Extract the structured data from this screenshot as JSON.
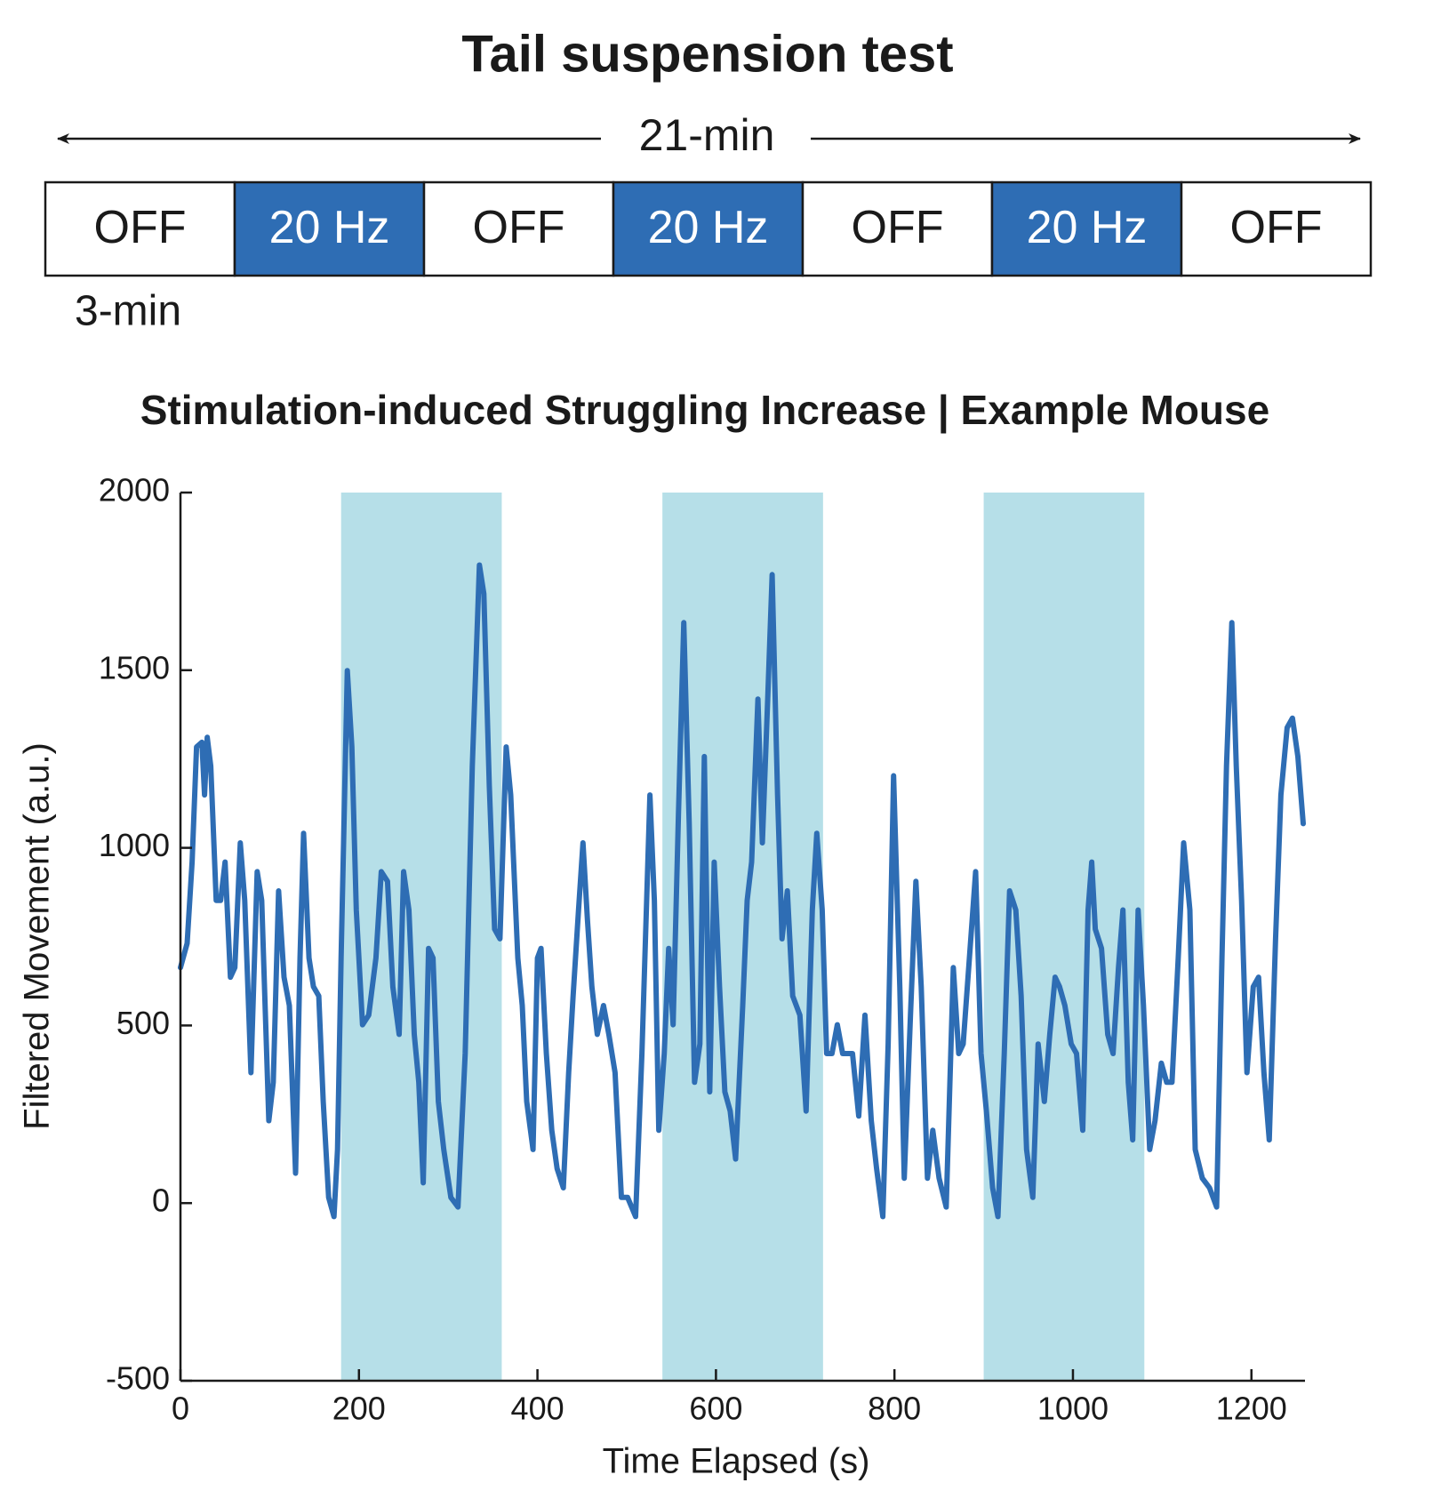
{
  "header": {
    "title": "Tail suspension test",
    "duration": "21-min",
    "segments": [
      {
        "label": "OFF",
        "active": false
      },
      {
        "label": "20 Hz",
        "active": true
      },
      {
        "label": "OFF",
        "active": false
      },
      {
        "label": "20 Hz",
        "active": true
      },
      {
        "label": "OFF",
        "active": false
      },
      {
        "label": "20 Hz",
        "active": true
      },
      {
        "label": "OFF",
        "active": false
      }
    ],
    "segment_duration": "3-min",
    "active_color": "#2e6db4"
  },
  "chart_data": {
    "type": "line",
    "title": "Stimulation-induced Struggling Increase | Example Mouse",
    "xlabel": "Time Elapsed (s)",
    "ylabel": "Filtered Movement (a.u.)",
    "color": "#2e6db4",
    "shade_color": "#b6dfe8",
    "stimulation_periods": [
      [
        180,
        360
      ],
      [
        540,
        720
      ],
      [
        900,
        1080
      ]
    ],
    "xlim": [
      0,
      1260
    ],
    "ylim": [
      -500,
      2000
    ],
    "xticks": [
      0,
      200,
      400,
      600,
      800,
      1000,
      1200
    ],
    "yticks": [
      -500,
      0,
      500,
      1000,
      1500,
      2000
    ],
    "x": [
      0,
      7.5,
      13,
      18,
      24,
      27,
      30,
      34,
      40,
      45,
      50,
      56,
      61,
      67,
      72,
      79,
      86,
      91,
      99,
      104,
      110,
      116,
      122,
      129,
      134,
      138,
      144,
      149,
      155,
      160,
      166,
      172,
      176,
      180,
      187,
      192,
      197,
      204,
      211,
      219,
      225,
      232,
      238,
      245,
      250,
      256,
      262,
      267,
      272,
      278,
      283,
      289,
      295,
      303,
      311,
      319,
      327,
      335,
      340,
      346,
      352,
      358,
      365,
      370,
      378,
      383,
      388,
      395,
      400,
      404,
      410,
      416,
      422,
      429,
      435,
      440,
      446,
      451,
      456,
      461,
      467,
      474,
      480,
      487,
      494,
      501,
      510,
      517,
      526,
      531,
      536,
      542,
      547,
      552,
      558,
      564,
      570,
      576,
      582,
      587,
      593,
      598,
      604,
      610,
      616,
      622,
      630,
      635,
      640,
      647,
      652,
      658,
      663,
      669,
      674,
      680,
      686,
      694,
      701,
      708,
      713,
      719,
      724,
      730,
      736,
      742,
      753,
      760,
      767,
      774,
      780,
      787,
      793,
      799,
      806,
      811,
      818,
      824,
      830,
      837,
      843,
      850,
      858,
      866,
      872,
      877,
      884,
      891,
      897,
      903,
      910,
      916,
      923,
      929,
      936,
      942,
      948,
      955,
      961,
      968,
      974,
      980,
      985,
      991,
      998,
      1004,
      1011,
      1017,
      1021,
      1025,
      1032,
      1039,
      1045,
      1051,
      1056,
      1062,
      1067,
      1073,
      1079,
      1086,
      1092,
      1099,
      1105,
      1111,
      1118,
      1124,
      1131,
      1137,
      1145,
      1153,
      1161,
      1167,
      1172,
      1178,
      1183,
      1189,
      1195,
      1202,
      1208,
      1214,
      1220,
      1227,
      1233,
      1240,
      1246,
      1252,
      1258
    ],
    "values": [
      663,
      731,
      960,
      1284,
      1297,
      1149,
      1311,
      1230,
      852,
      852,
      960,
      636,
      663,
      1014,
      852,
      367,
      933,
      852,
      232,
      340,
      879,
      636,
      556,
      84,
      690,
      1041,
      690,
      609,
      583,
      286,
      16,
      -38,
      151,
      690,
      1499,
      1284,
      825,
      502,
      529,
      690,
      933,
      906,
      609,
      475,
      933,
      825,
      475,
      340,
      57,
      717,
      690,
      286,
      151,
      16,
      -11,
      421,
      1230,
      1796,
      1715,
      1176,
      771,
      744,
      1284,
      1149,
      690,
      556,
      286,
      151,
      690,
      717,
      421,
      205,
      97,
      43,
      367,
      583,
      825,
      1014,
      798,
      609,
      475,
      556,
      475,
      367,
      16,
      16,
      -38,
      421,
      1149,
      852,
      205,
      421,
      717,
      502,
      1095,
      1634,
      1068,
      340,
      448,
      1257,
      313,
      960,
      609,
      313,
      259,
      124,
      556,
      852,
      960,
      1419,
      1014,
      1419,
      1769,
      1149,
      744,
      879,
      583,
      529,
      259,
      825,
      1041,
      825,
      421,
      421,
      502,
      421,
      421,
      245,
      529,
      232,
      97,
      -38,
      448,
      1203,
      609,
      70,
      529,
      906,
      609,
      70,
      205,
      70,
      -11,
      663,
      421,
      448,
      690,
      933,
      421,
      259,
      43,
      -38,
      421,
      879,
      825,
      583,
      151,
      16,
      448,
      286,
      475,
      636,
      609,
      556,
      448,
      421,
      205,
      825,
      960,
      771,
      717,
      475,
      421,
      663,
      825,
      340,
      178,
      825,
      556,
      151,
      232,
      394,
      340,
      340,
      690,
      1014,
      825,
      151,
      70,
      43,
      -11,
      690,
      1230,
      1634,
      1230,
      852,
      367,
      609,
      636,
      367,
      178,
      744,
      1149,
      1338,
      1365,
      1257,
      1068
    ]
  }
}
